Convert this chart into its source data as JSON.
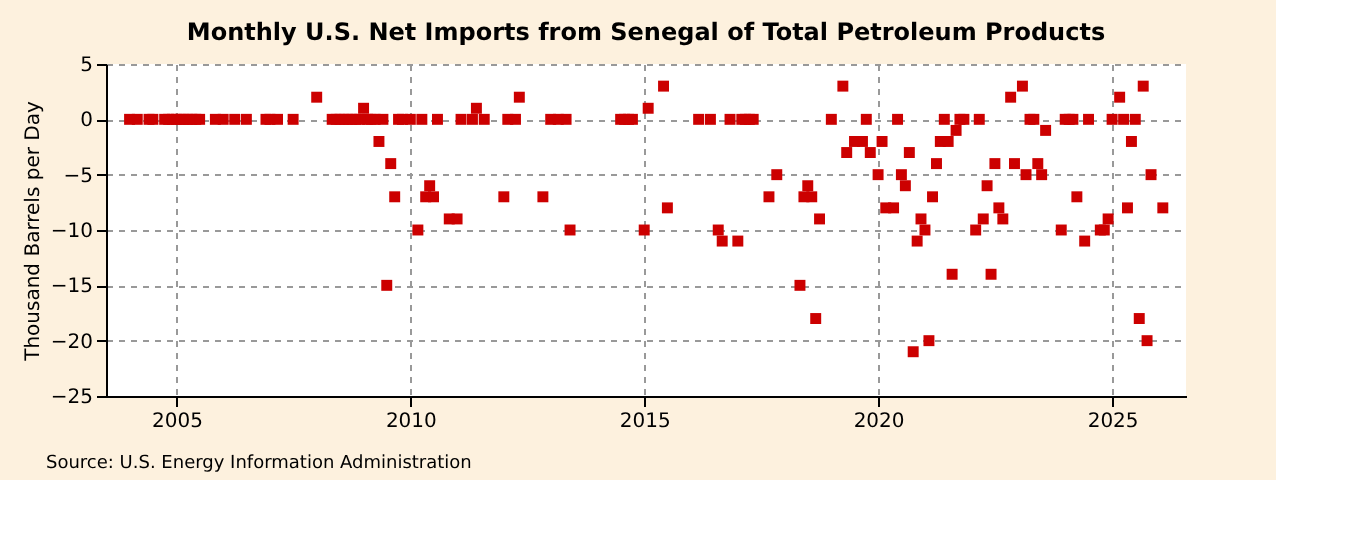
{
  "chart_data": {
    "type": "scatter",
    "title": "Monthly U.S. Net Imports from Senegal of Total Petroleum Products",
    "ylabel": "Thousand Barrels per Day",
    "annotations": [
      "Source: U.S. Energy Information Administration"
    ],
    "xlim": [
      "2003-07",
      "2026-08"
    ],
    "xticks": [
      "2005",
      "2010",
      "2015",
      "2020",
      "2025"
    ],
    "ylim": [
      -25,
      5
    ],
    "yticks": [
      -25,
      -20,
      -15,
      -10,
      -5,
      0,
      5
    ],
    "grid": true,
    "marker": "square",
    "series": [
      {
        "color": "#cc0000",
        "x": [
          "2004-01",
          "2004-03",
          "2004-06",
          "2004-07",
          "2004-10",
          "2004-11",
          "2004-12",
          "2005-01",
          "2005-02",
          "2005-03",
          "2005-04",
          "2005-05",
          "2005-06",
          "2005-07",
          "2005-11",
          "2006-01",
          "2006-04",
          "2006-07",
          "2006-12",
          "2007-01",
          "2007-03",
          "2007-07",
          "2008-01",
          "2008-05",
          "2008-06",
          "2008-07",
          "2008-08",
          "2008-09",
          "2008-10",
          "2008-11",
          "2008-12",
          "2009-01",
          "2009-02",
          "2009-03",
          "2009-04",
          "2009-05",
          "2009-06",
          "2009-07",
          "2009-08",
          "2009-09",
          "2009-10",
          "2009-11",
          "2010-01",
          "2010-03",
          "2010-04",
          "2010-05",
          "2010-06",
          "2010-07",
          "2010-08",
          "2010-11",
          "2011-01",
          "2011-02",
          "2011-05",
          "2011-06",
          "2011-08",
          "2012-01",
          "2012-02",
          "2012-04",
          "2012-05",
          "2012-11",
          "2013-01",
          "2013-03",
          "2013-05",
          "2013-06",
          "2014-07",
          "2014-08",
          "2014-09",
          "2014-10",
          "2015-01",
          "2015-02",
          "2015-06",
          "2015-07",
          "2016-03",
          "2016-06",
          "2016-08",
          "2016-09",
          "2016-11",
          "2017-01",
          "2017-02",
          "2017-03",
          "2017-04",
          "2017-05",
          "2017-09",
          "2017-11",
          "2018-05",
          "2018-06",
          "2018-07",
          "2018-08",
          "2018-09",
          "2018-10",
          "2019-01",
          "2019-04",
          "2019-05",
          "2019-07",
          "2019-09",
          "2019-10",
          "2019-11",
          "2020-01",
          "2020-02",
          "2020-03",
          "2020-05",
          "2020-06",
          "2020-07",
          "2020-08",
          "2020-09",
          "2020-10",
          "2020-11",
          "2020-12",
          "2021-01",
          "2021-02",
          "2021-03",
          "2021-04",
          "2021-05",
          "2021-06",
          "2021-07",
          "2021-08",
          "2021-09",
          "2021-10",
          "2021-11",
          "2022-02",
          "2022-03",
          "2022-04",
          "2022-05",
          "2022-06",
          "2022-07",
          "2022-08",
          "2022-09",
          "2022-11",
          "2022-12",
          "2023-02",
          "2023-03",
          "2023-04",
          "2023-05",
          "2023-06",
          "2023-07",
          "2023-08",
          "2023-12",
          "2024-01",
          "2024-02",
          "2024-03",
          "2024-04",
          "2024-06",
          "2024-07",
          "2024-10",
          "2024-11",
          "2024-12",
          "2025-01",
          "2025-03",
          "2025-04",
          "2025-05",
          "2025-06",
          "2025-07",
          "2025-08",
          "2025-09",
          "2025-10",
          "2025-11",
          "2026-02"
        ],
        "values": [
          0,
          0,
          0,
          0,
          0,
          0,
          0,
          0,
          0,
          0,
          0,
          0,
          0,
          0,
          0,
          0,
          0,
          0,
          0,
          0,
          0,
          0,
          2,
          0,
          0,
          0,
          0,
          0,
          0,
          0,
          0,
          1,
          0,
          0,
          0,
          -2,
          0,
          -15,
          -4,
          -7,
          0,
          0,
          0,
          -10,
          0,
          -7,
          -6,
          -7,
          0,
          -9,
          -9,
          0,
          0,
          1,
          0,
          -7,
          0,
          0,
          2,
          -7,
          0,
          0,
          0,
          -10,
          0,
          0,
          0,
          0,
          -10,
          1,
          3,
          -8,
          0,
          0,
          -10,
          -11,
          0,
          -11,
          0,
          0,
          0,
          0,
          -7,
          -5,
          -15,
          -7,
          -6,
          -7,
          -18,
          -9,
          0,
          3,
          -3,
          -2,
          -2,
          0,
          -3,
          -5,
          -2,
          -8,
          -8,
          0,
          -5,
          -6,
          -3,
          -21,
          -11,
          -9,
          -10,
          -20,
          -7,
          -4,
          -2,
          0,
          -2,
          -14,
          -1,
          0,
          0,
          -10,
          0,
          -9,
          -6,
          -14,
          -4,
          -8,
          -9,
          2,
          -4,
          3,
          -5,
          0,
          0,
          -4,
          -5,
          -1,
          -10,
          0,
          0,
          0,
          -7,
          -11,
          0,
          -10,
          -10,
          -9,
          0,
          2,
          0,
          -8,
          -2,
          0,
          -18,
          3,
          -20,
          -5,
          -8
        ]
      }
    ]
  }
}
